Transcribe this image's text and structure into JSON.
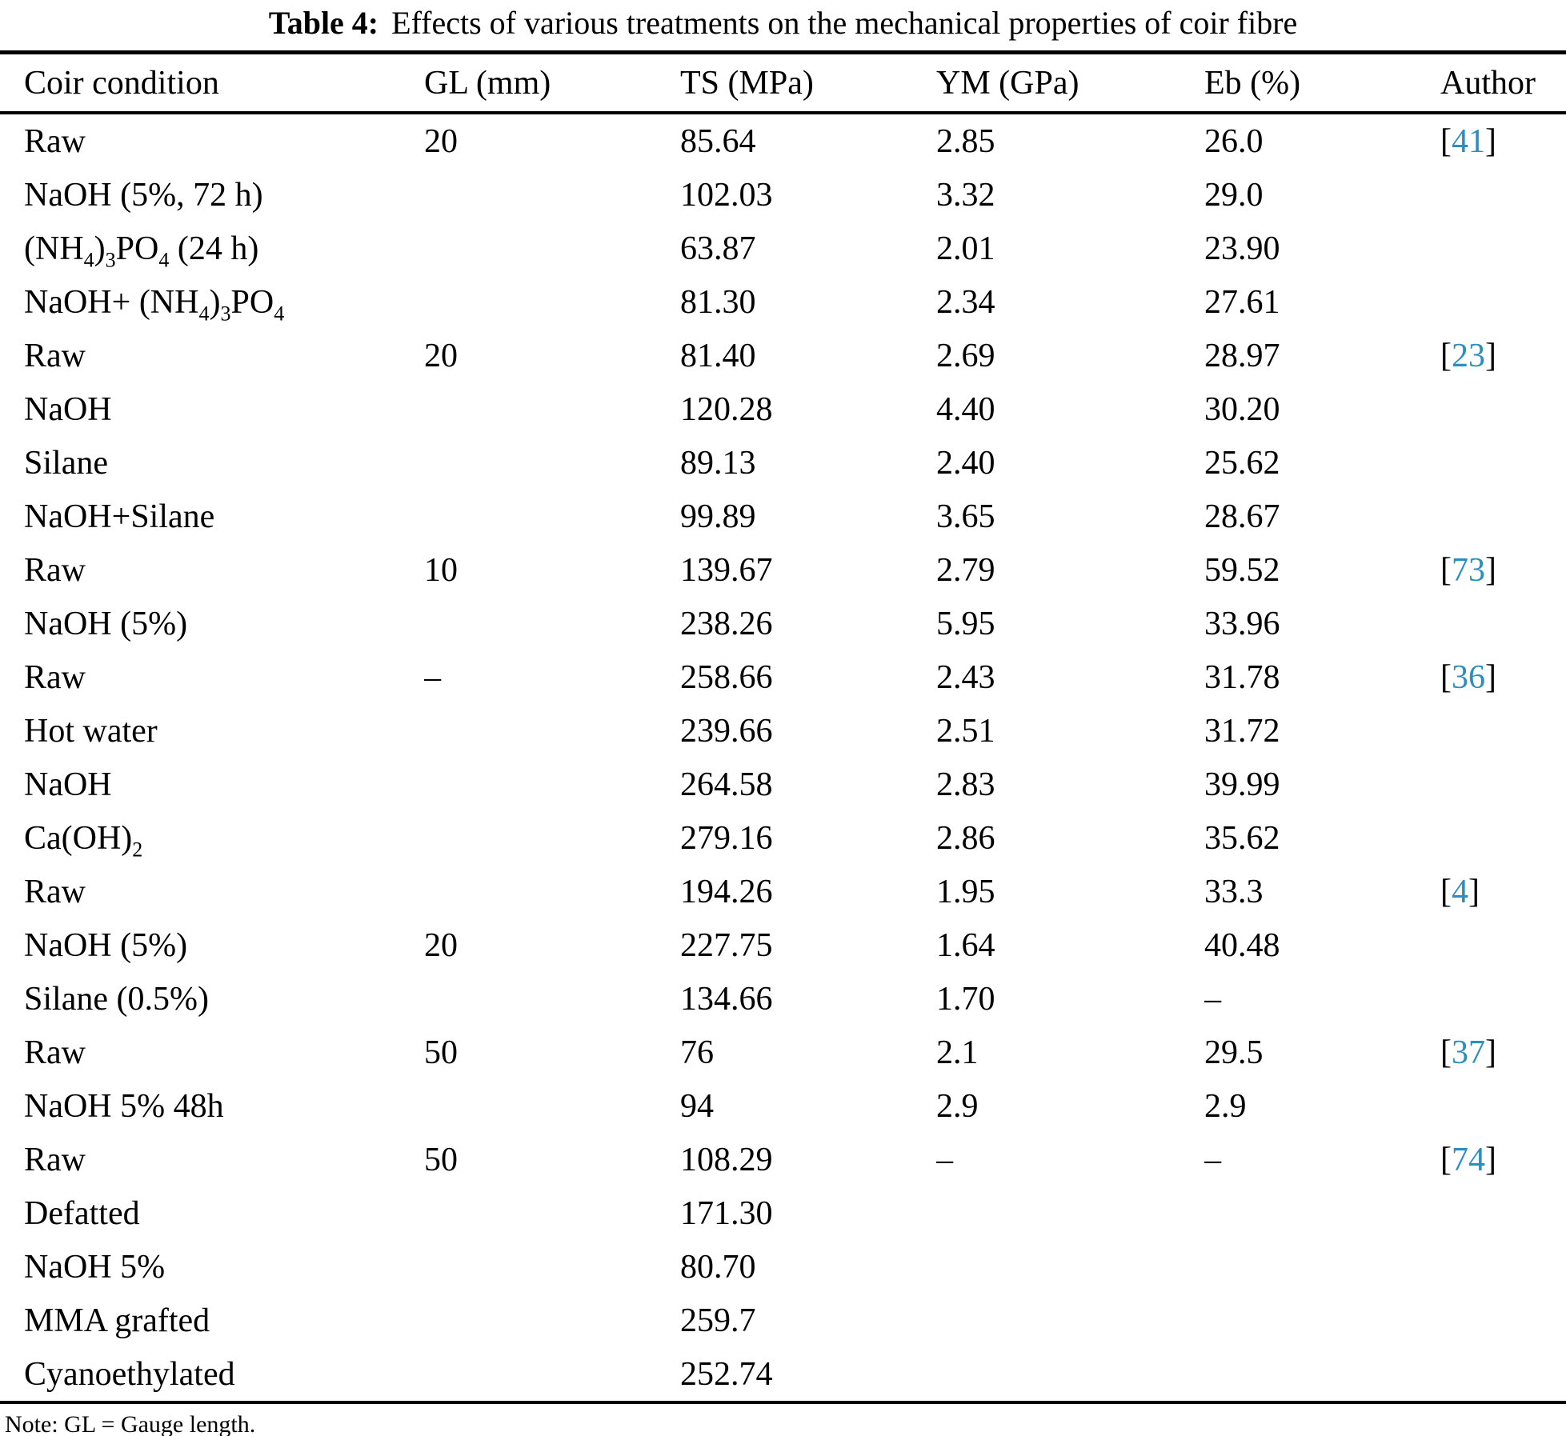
{
  "caption": {
    "label": "Table 4:",
    "text": "Effects of various treatments on the mechanical properties of coir fibre"
  },
  "colors": {
    "citation_link": "#2a8fc0",
    "text": "#000000",
    "background": "#ffffff"
  },
  "table": {
    "headers": [
      "Coir condition",
      "GL (mm)",
      "TS (MPa)",
      "YM (GPa)",
      "Eb (%)",
      "Author"
    ],
    "citation_open": "[",
    "citation_close": "]",
    "rows": [
      {
        "cond": "Raw",
        "gl": "20",
        "ts": "85.64",
        "ym": "2.85",
        "eb": "26.0",
        "cite": "41"
      },
      {
        "cond": "NaOH (5%, 72 h)",
        "gl": "",
        "ts": "102.03",
        "ym": "3.32",
        "eb": "29.0",
        "cite": ""
      },
      {
        "cond": "(NH~4~)~3~PO~4~ (24 h)",
        "gl": "",
        "ts": "63.87",
        "ym": "2.01",
        "eb": "23.90",
        "cite": ""
      },
      {
        "cond": "NaOH+ (NH~4~)~3~PO~4~",
        "gl": "",
        "ts": "81.30",
        "ym": "2.34",
        "eb": "27.61",
        "cite": ""
      },
      {
        "cond": "Raw",
        "gl": "20",
        "ts": "81.40",
        "ym": "2.69",
        "eb": "28.97",
        "cite": "23"
      },
      {
        "cond": "NaOH",
        "gl": "",
        "ts": "120.28",
        "ym": "4.40",
        "eb": "30.20",
        "cite": ""
      },
      {
        "cond": "Silane",
        "gl": "",
        "ts": "89.13",
        "ym": "2.40",
        "eb": "25.62",
        "cite": ""
      },
      {
        "cond": "NaOH+Silane",
        "gl": "",
        "ts": "99.89",
        "ym": "3.65",
        "eb": "28.67",
        "cite": ""
      },
      {
        "cond": "Raw",
        "gl": "10",
        "ts": "139.67",
        "ym": "2.79",
        "eb": "59.52",
        "cite": "73"
      },
      {
        "cond": "NaOH (5%)",
        "gl": "",
        "ts": "238.26",
        "ym": "5.95",
        "eb": "33.96",
        "cite": ""
      },
      {
        "cond": "Raw",
        "gl": "–",
        "ts": "258.66",
        "ym": "2.43",
        "eb": "31.78",
        "cite": "36"
      },
      {
        "cond": "Hot water",
        "gl": "",
        "ts": "239.66",
        "ym": "2.51",
        "eb": "31.72",
        "cite": ""
      },
      {
        "cond": "NaOH",
        "gl": "",
        "ts": "264.58",
        "ym": "2.83",
        "eb": "39.99",
        "cite": ""
      },
      {
        "cond": "Ca(OH)~2~",
        "gl": "",
        "ts": "279.16",
        "ym": "2.86",
        "eb": "35.62",
        "cite": ""
      },
      {
        "cond": "Raw",
        "gl": "",
        "ts": "194.26",
        "ym": "1.95",
        "eb": "33.3",
        "cite": "4"
      },
      {
        "cond": "NaOH (5%)",
        "gl": "20",
        "ts": "227.75",
        "ym": "1.64",
        "eb": "40.48",
        "cite": ""
      },
      {
        "cond": "Silane (0.5%)",
        "gl": "",
        "ts": "134.66",
        "ym": "1.70",
        "eb": "–",
        "cite": ""
      },
      {
        "cond": "Raw",
        "gl": "50",
        "ts": "76",
        "ym": "2.1",
        "eb": "29.5",
        "cite": "37"
      },
      {
        "cond": "NaOH 5% 48h",
        "gl": "",
        "ts": "94",
        "ym": "2.9",
        "eb": "2.9",
        "cite": ""
      },
      {
        "cond": "Raw",
        "gl": "50",
        "ts": "108.29",
        "ym": "–",
        "eb": "–",
        "cite": "74"
      },
      {
        "cond": "Defatted",
        "gl": "",
        "ts": "171.30",
        "ym": "",
        "eb": "",
        "cite": ""
      },
      {
        "cond": "NaOH 5%",
        "gl": "",
        "ts": "80.70",
        "ym": "",
        "eb": "",
        "cite": ""
      },
      {
        "cond": "MMA grafted",
        "gl": "",
        "ts": "259.7",
        "ym": "",
        "eb": "",
        "cite": ""
      },
      {
        "cond": "Cyanoethylated",
        "gl": "",
        "ts": "252.74",
        "ym": "",
        "eb": "",
        "cite": ""
      }
    ]
  },
  "note": "Note: GL = Gauge length."
}
